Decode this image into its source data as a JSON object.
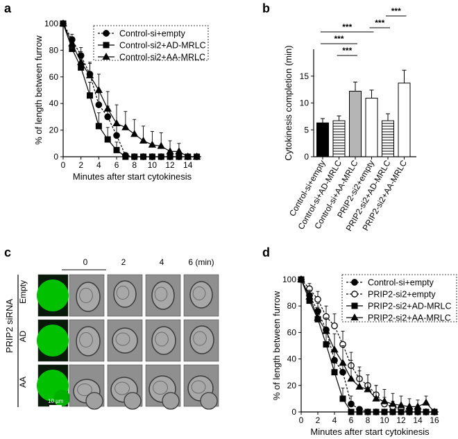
{
  "panels": {
    "a": {
      "label": "a"
    },
    "b": {
      "label": "b"
    },
    "c": {
      "label": "c"
    },
    "d": {
      "label": "d"
    }
  },
  "chart_data": [
    {
      "id": "a",
      "type": "line",
      "xlabel": "Minutes after start cytokinesis",
      "ylabel": "% of length between furrow",
      "xlim": [
        0,
        15.5
      ],
      "ylim": [
        0,
        100
      ],
      "xticks": [
        0,
        2,
        4,
        6,
        8,
        10,
        12,
        14
      ],
      "yticks": [
        0,
        20,
        40,
        60,
        80,
        100
      ],
      "legend_position": "top-right",
      "series": [
        {
          "name": "Control-si+empty",
          "marker": "circle",
          "filled": true,
          "line": "dashed",
          "x": [
            0,
            1,
            2,
            3,
            4,
            5,
            6,
            7,
            8,
            9,
            10,
            11,
            12,
            13,
            14,
            15
          ],
          "y": [
            100,
            88,
            76,
            62,
            39,
            30,
            16,
            1,
            0,
            0,
            0,
            0,
            0,
            0,
            0,
            0
          ],
          "err": [
            0,
            4,
            6,
            8,
            9,
            8,
            9,
            2,
            0,
            0,
            0,
            0,
            0,
            0,
            0,
            0
          ]
        },
        {
          "name": "Control-si2+AD-MRLC",
          "marker": "square",
          "filled": true,
          "line": "solid",
          "x": [
            0,
            1,
            2,
            3,
            4,
            5,
            6,
            7,
            8,
            9,
            10,
            11,
            12,
            13,
            14,
            15
          ],
          "y": [
            100,
            81,
            67,
            46,
            23,
            13,
            5,
            0,
            0,
            0,
            0,
            0,
            0,
            0,
            0,
            0
          ],
          "err": [
            0,
            4,
            6,
            10,
            10,
            9,
            6,
            0,
            0,
            0,
            0,
            0,
            0,
            0,
            0,
            0
          ]
        },
        {
          "name": "Control-si2+AA-MRLC",
          "marker": "triangle",
          "filled": true,
          "line": "solid",
          "x": [
            0,
            1,
            2,
            3,
            4,
            5,
            6,
            7,
            8,
            9,
            10,
            11,
            12,
            13,
            14,
            15
          ],
          "y": [
            100,
            85,
            71,
            61,
            50,
            36,
            25,
            22,
            17,
            12,
            9,
            8,
            4,
            4,
            0,
            0
          ],
          "err": [
            0,
            5,
            8,
            10,
            12,
            13,
            14,
            12,
            11,
            11,
            10,
            10,
            8,
            6,
            0,
            0
          ]
        }
      ]
    },
    {
      "id": "b",
      "type": "bar",
      "ylabel": "Cytokinesis completion (min)",
      "ylim": [
        0,
        20
      ],
      "yticks": [
        0,
        5,
        10,
        15
      ],
      "categories": [
        "Control-si+empty",
        "Control-si+AD-MRLC",
        "Control-si+AA-MRLC",
        "PRIP2-si2+empty",
        "PRIP2-si2+AD-MRLC",
        "PRIP2-si2+AA-MRLC"
      ],
      "values": [
        6.3,
        6.7,
        12.2,
        10.9,
        6.7,
        13.7
      ],
      "errors": [
        0.8,
        0.9,
        1.7,
        1.5,
        1.3,
        2.4
      ],
      "fills": [
        "black",
        "hstripe",
        "gray",
        "white",
        "hstripe-white",
        "white"
      ],
      "significance": [
        {
          "from": 0,
          "to": 3,
          "label": "***"
        },
        {
          "from": 0,
          "to": 2,
          "label": "***"
        },
        {
          "from": 1,
          "to": 2,
          "label": "***"
        },
        {
          "from": 3,
          "to": 4,
          "label": "***"
        },
        {
          "from": 4,
          "to": 5,
          "label": "***"
        }
      ]
    },
    {
      "id": "d",
      "type": "line",
      "xlabel": "Minutes after start cytokinesis",
      "ylabel": "% of length between furrow",
      "xlim": [
        0,
        16.5
      ],
      "ylim": [
        0,
        100
      ],
      "xticks": [
        0,
        2,
        4,
        6,
        8,
        10,
        12,
        14,
        16
      ],
      "yticks": [
        0,
        20,
        40,
        60,
        80,
        100
      ],
      "legend_position": "top-right",
      "series": [
        {
          "name": "Control-si+empty",
          "marker": "circle",
          "filled": true,
          "line": "dashed",
          "x": [
            0,
            1,
            2,
            3,
            4,
            5,
            6,
            7,
            8,
            9,
            10,
            11,
            12,
            13,
            14,
            15,
            16
          ],
          "y": [
            100,
            88,
            76,
            62,
            39,
            30,
            6,
            2,
            0,
            0,
            0,
            0,
            0,
            0,
            0,
            0,
            0
          ],
          "err": [
            0,
            4,
            6,
            8,
            9,
            8,
            6,
            2,
            0,
            0,
            0,
            0,
            0,
            0,
            0,
            0,
            0
          ]
        },
        {
          "name": "PRIP2-si2+empty",
          "marker": "circle",
          "filled": false,
          "line": "dashed",
          "x": [
            0,
            1,
            2,
            3,
            4,
            5,
            6,
            7,
            8,
            9,
            10,
            11,
            12,
            13,
            14,
            15,
            16
          ],
          "y": [
            100,
            93,
            85,
            72,
            65,
            51,
            35,
            25,
            20,
            13,
            6,
            4,
            2,
            0,
            0,
            0,
            0
          ],
          "err": [
            0,
            4,
            6,
            8,
            9,
            10,
            10,
            9,
            8,
            7,
            5,
            4,
            3,
            0,
            0,
            0,
            0
          ]
        },
        {
          "name": "PRIP2-si2+AD-MRLC",
          "marker": "square",
          "filled": true,
          "line": "solid",
          "x": [
            0,
            1,
            2,
            3,
            4,
            5,
            6,
            7,
            8,
            9,
            10,
            11,
            12,
            13,
            14,
            15,
            16
          ],
          "y": [
            100,
            84,
            70,
            51,
            30,
            10,
            0,
            0,
            0,
            0,
            0,
            0,
            0,
            0,
            0,
            0,
            0
          ],
          "err": [
            0,
            5,
            7,
            9,
            10,
            8,
            0,
            0,
            0,
            0,
            0,
            0,
            0,
            0,
            0,
            0,
            0
          ]
        },
        {
          "name": "PRIP2-si2+AA-MRLC",
          "marker": "triangle",
          "filled": true,
          "line": "solid",
          "x": [
            0,
            1,
            2,
            3,
            4,
            5,
            6,
            7,
            8,
            9,
            10,
            11,
            12,
            13,
            14,
            15,
            16
          ],
          "y": [
            100,
            87,
            71,
            61,
            47,
            37,
            25,
            19,
            17,
            10,
            8,
            6,
            5,
            4,
            4,
            7,
            0
          ],
          "err": [
            0,
            5,
            8,
            10,
            12,
            13,
            14,
            12,
            11,
            10,
            9,
            8,
            7,
            6,
            5,
            5,
            0
          ]
        }
      ]
    }
  ],
  "microscopy": {
    "side_label": "PRIP2 siRNA",
    "row_labels": [
      "Empty",
      "AD",
      "AA"
    ],
    "time_labels": [
      "0",
      "2",
      "4",
      "6 (min)"
    ],
    "scale_bar_label": "10 µm",
    "colors": {
      "green": "#00c000",
      "gray": "#8c8c8c"
    }
  }
}
